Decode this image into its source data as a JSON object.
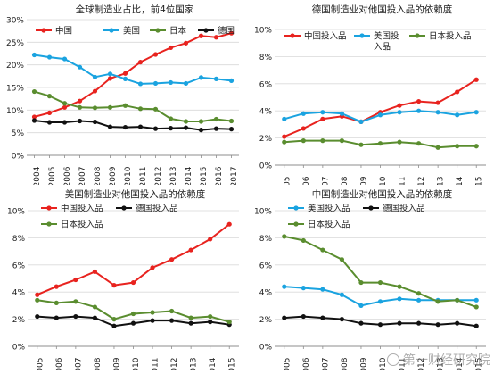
{
  "chart_data": [
    {
      "type": "line",
      "title": "全球制造业占比，前4位国家",
      "x": [
        "2004",
        "2005",
        "2006",
        "2007",
        "2008",
        "2009",
        "2010",
        "2011",
        "2012",
        "2013",
        "2014",
        "2015",
        "2016",
        "2017"
      ],
      "ylim": [
        0,
        30
      ],
      "yticks": [
        "0%",
        "5%",
        "10%",
        "15%",
        "20%",
        "25%",
        "30%"
      ],
      "legend_position": "top",
      "series": [
        {
          "name": "中国",
          "color": "#e8231f",
          "values": [
            8.5,
            9.4,
            10.6,
            12.0,
            14.2,
            17.0,
            18.1,
            20.6,
            22.3,
            23.8,
            24.8,
            26.4,
            26.1,
            27.0
          ]
        },
        {
          "name": "美国",
          "color": "#1aa3e0",
          "values": [
            22.2,
            21.7,
            21.3,
            19.5,
            17.3,
            18.0,
            16.9,
            15.8,
            15.9,
            16.1,
            15.9,
            17.2,
            16.9,
            16.5
          ]
        },
        {
          "name": "日本",
          "color": "#5a8d2f",
          "values": [
            14.1,
            13.1,
            11.5,
            10.6,
            10.5,
            10.6,
            11.0,
            10.3,
            10.2,
            8.1,
            7.5,
            7.5,
            8.0,
            7.6
          ]
        },
        {
          "name": "德国",
          "color": "#111111",
          "values": [
            7.7,
            7.3,
            7.3,
            7.6,
            7.4,
            6.3,
            6.2,
            6.3,
            5.9,
            6.0,
            6.1,
            5.6,
            5.9,
            5.8
          ]
        }
      ]
    },
    {
      "type": "line",
      "title": "德国制造业对他国投入品的依赖度",
      "x": [
        "2005",
        "2006",
        "2007",
        "2008",
        "2009",
        "2010",
        "2011",
        "2012",
        "2013",
        "2014",
        "2015"
      ],
      "ylim": [
        0,
        10
      ],
      "yticks": [
        "0%",
        "2%",
        "4%",
        "6%",
        "8%",
        "10%"
      ],
      "legend_position": "top",
      "series": [
        {
          "name": "中国投入品",
          "color": "#e8231f",
          "values": [
            2.1,
            2.7,
            3.4,
            3.6,
            3.2,
            3.9,
            4.4,
            4.7,
            4.6,
            5.4,
            6.3
          ]
        },
        {
          "name": "美国投\n入品",
          "color": "#1aa3e0",
          "values": [
            3.4,
            3.8,
            3.9,
            3.8,
            3.2,
            3.7,
            3.9,
            4.0,
            3.9,
            3.7,
            3.9
          ]
        },
        {
          "name": "日本投入品",
          "color": "#5a8d2f",
          "values": [
            1.7,
            1.8,
            1.8,
            1.8,
            1.5,
            1.6,
            1.7,
            1.6,
            1.3,
            1.4,
            1.4
          ]
        }
      ]
    },
    {
      "type": "line",
      "title": "美国制造业对他国投入品的依赖度",
      "x": [
        "2005",
        "2006",
        "2007",
        "2008",
        "2009",
        "2010",
        "2011",
        "2012",
        "2013",
        "2014",
        "2015"
      ],
      "ylim": [
        0,
        10
      ],
      "yticks": [
        "0%",
        "2%",
        "4%",
        "6%",
        "8%",
        "10%"
      ],
      "legend_position": "top",
      "series": [
        {
          "name": "中国投入品",
          "color": "#e8231f",
          "values": [
            3.8,
            4.4,
            4.9,
            5.5,
            4.5,
            4.7,
            5.8,
            6.4,
            7.1,
            7.9,
            9.0
          ]
        },
        {
          "name": "德国投入品",
          "color": "#111111",
          "values": [
            2.2,
            2.1,
            2.2,
            2.1,
            1.5,
            1.7,
            1.9,
            1.9,
            1.7,
            1.8,
            1.6
          ]
        },
        {
          "name": "日本投入品",
          "color": "#5a8d2f",
          "values": [
            3.4,
            3.2,
            3.3,
            2.9,
            2.0,
            2.4,
            2.5,
            2.6,
            2.1,
            2.2,
            1.8
          ]
        }
      ]
    },
    {
      "type": "line",
      "title": "中国制造业对他国投入品的依赖度",
      "x": [
        "2005",
        "2006",
        "2007",
        "2008",
        "2009",
        "2010",
        "2011",
        "2012",
        "2013",
        "2014",
        "2015"
      ],
      "ylim": [
        0,
        10
      ],
      "yticks": [
        "0%",
        "2%",
        "4%",
        "6%",
        "8%",
        "10%"
      ],
      "legend_position": "top",
      "series": [
        {
          "name": "美国投入品",
          "color": "#1aa3e0",
          "values": [
            4.4,
            4.3,
            4.2,
            3.8,
            3.0,
            3.3,
            3.5,
            3.4,
            3.4,
            3.4,
            3.4
          ]
        },
        {
          "name": "德国投入品",
          "color": "#111111",
          "values": [
            2.1,
            2.2,
            2.1,
            2.0,
            1.7,
            1.6,
            1.7,
            1.7,
            1.6,
            1.7,
            1.5
          ]
        },
        {
          "name": "日本投入品",
          "color": "#5a8d2f",
          "values": [
            8.1,
            7.8,
            7.1,
            6.4,
            4.7,
            4.7,
            4.4,
            3.9,
            3.3,
            3.4,
            2.9
          ]
        }
      ]
    }
  ],
  "watermark": {
    "text": "第一财经研究院",
    "icon": "search-circle-icon"
  }
}
